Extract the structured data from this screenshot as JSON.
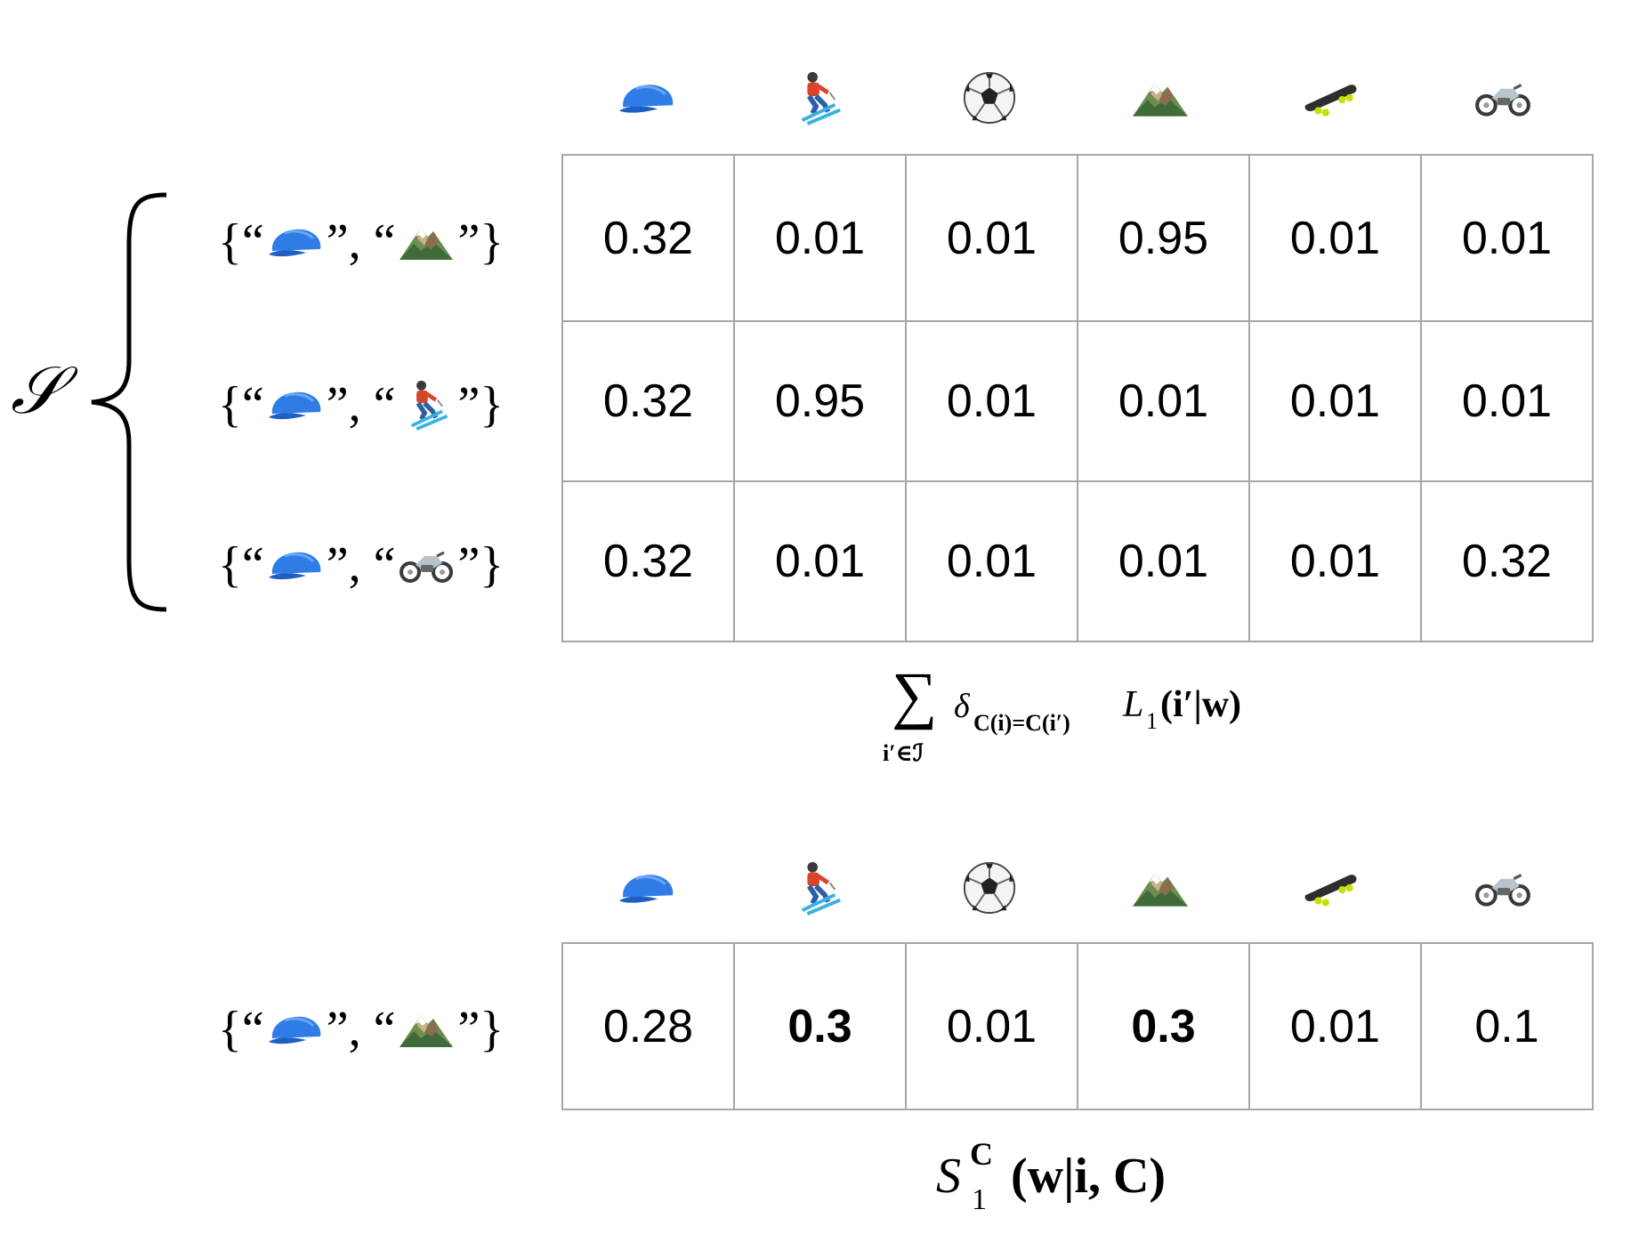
{
  "columns": [
    "cap-icon",
    "skier-icon",
    "soccer-ball-icon",
    "mountain-icon",
    "skateboard-icon",
    "motorcycle-icon"
  ],
  "set_label": "𝒮",
  "top_table": {
    "rows": [
      {
        "pair": [
          "cap-icon",
          "mountain-icon"
        ],
        "values": [
          "0.32",
          "0.01",
          "0.01",
          "0.95",
          "0.01",
          "0.01"
        ]
      },
      {
        "pair": [
          "cap-icon",
          "skier-icon"
        ],
        "values": [
          "0.32",
          "0.95",
          "0.01",
          "0.01",
          "0.01",
          "0.01"
        ]
      },
      {
        "pair": [
          "cap-icon",
          "motorcycle-icon"
        ],
        "values": [
          "0.32",
          "0.01",
          "0.01",
          "0.01",
          "0.01",
          "0.32"
        ]
      }
    ]
  },
  "sum_formula": {
    "operator": "∑",
    "subscript": "i′∈ℐ",
    "delta_sub": "C(i)=C(i′)",
    "body": "L",
    "body_sub": "1",
    "args": "(i′|w)"
  },
  "bottom_table": {
    "row": {
      "pair": [
        "cap-icon",
        "mountain-icon"
      ],
      "values": [
        "0.28",
        "0.3",
        "0.01",
        "0.3",
        "0.01",
        "0.1"
      ],
      "bold": [
        false,
        true,
        false,
        true,
        false,
        false
      ]
    }
  },
  "result_formula": {
    "base": "S",
    "sup": "C",
    "sub": "1",
    "args": "(w|i, C)"
  },
  "colors": {
    "grid": "#a6a6a6",
    "cap": "#2f7ce6",
    "text": "#000000"
  }
}
